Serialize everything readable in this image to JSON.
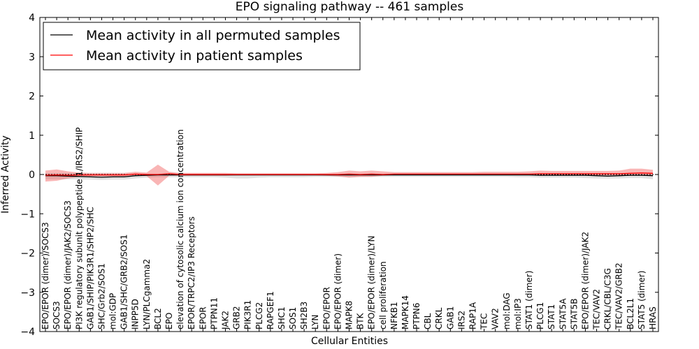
{
  "chart_data": {
    "type": "line",
    "title": "EPO signaling pathway -- 461 samples",
    "xlabel": "Cellular Entities",
    "ylabel": "Inferred Activity",
    "ylim": [
      -4,
      4
    ],
    "yticks": [
      "4",
      "3",
      "2",
      "1",
      "0",
      "−1",
      "−2",
      "−3",
      "−4"
    ],
    "ytick_values": [
      4,
      3,
      2,
      1,
      0,
      -1,
      -2,
      -3,
      -4
    ],
    "legend": [
      {
        "label": "Mean activity in all permuted samples",
        "color": "#000000"
      },
      {
        "label": "Mean activity in patient samples",
        "color": "#ff0000"
      }
    ],
    "legend_placement": "top-left",
    "categories": [
      "EPO/EPOR (dimer)/SOCS3",
      "SOCS3",
      "EPO/EPOR (dimer)/JAK2/SOCS3",
      "PI3K regulatory subunit polypeptide 1/IRS2/SHIP",
      "GAB1/SHIP/PIK3R1/SHP2/SHC",
      "SHC/Grb2/SOS1",
      "mol:GDP",
      "GAB1/SHC/GRB2/SOS1",
      "INPP5D",
      "LYN/PLCgamma2",
      "BCL2",
      "EPO",
      "elevation of cytosolic calcium ion concentration",
      "EPOR/TRPC2/IP3 Receptors",
      "EPOR",
      "PTPN11",
      "JAK2",
      "GRB2",
      "PIK3R1",
      "PLCG2",
      "RAPGEF1",
      "SHC1",
      "SOS1",
      "SH2B3",
      "LYN",
      "EPO/EPOR",
      "EPO/EPOR (dimer)",
      "MAPK8",
      "BTK",
      "EPO/EPOR (dimer)/LYN",
      "cell proliferation",
      "NFKB1",
      "MAPK14",
      "PTPN6",
      "CBL",
      "CRKL",
      "GAB1",
      "IRS2",
      "RAP1A",
      "TEC",
      "VAV2",
      "mol:DAG",
      "mol:IP3",
      "STAT1 (dimer)",
      "PLCG1",
      "STAT1",
      "STAT5A",
      "STAT5B",
      "EPO/EPOR (dimer)/JAK2",
      "TEC/VAV2",
      "CRKL/CBL/C3G",
      "TEC/VAV2/GRB2",
      "BCL2L1",
      "STAT5 (dimer)",
      "HRAS"
    ],
    "series": [
      {
        "name": "Mean activity in all permuted samples",
        "color": "#000000",
        "values": [
          -0.03,
          -0.03,
          -0.04,
          -0.05,
          -0.06,
          -0.07,
          -0.06,
          -0.06,
          -0.03,
          -0.02,
          -0.01,
          -0.01,
          -0.01,
          -0.01,
          -0.01,
          -0.01,
          -0.01,
          -0.01,
          -0.01,
          -0.01,
          -0.01,
          -0.01,
          -0.01,
          -0.01,
          -0.01,
          -0.01,
          -0.01,
          -0.01,
          -0.01,
          -0.01,
          -0.01,
          -0.01,
          -0.01,
          -0.01,
          -0.01,
          -0.01,
          -0.01,
          -0.01,
          -0.01,
          -0.01,
          -0.01,
          -0.01,
          -0.01,
          -0.01,
          -0.02,
          -0.02,
          -0.02,
          -0.02,
          -0.02,
          -0.03,
          -0.04,
          -0.03,
          -0.02,
          -0.02,
          -0.03
        ],
        "band_upper": [
          0.03,
          0.03,
          0.03,
          0.03,
          0.02,
          0.02,
          0.02,
          0.02,
          0.02,
          0.02,
          0.02,
          0.02,
          0.02,
          0.02,
          0.02,
          0.02,
          0.02,
          0.01,
          0.01,
          0.01,
          0.01,
          0.01,
          0.01,
          0.01,
          0.01,
          0.01,
          0.01,
          0.01,
          0.01,
          0.01,
          0.01,
          0.01,
          0.01,
          0.01,
          0.01,
          0.01,
          0.01,
          0.01,
          0.01,
          0.01,
          0.01,
          0.01,
          0.01,
          0.01,
          0.01,
          0.01,
          0.01,
          0.01,
          0.01,
          0.01,
          0.01,
          0.01,
          0.01,
          0.01,
          0.01
        ],
        "band_lower": [
          -0.12,
          -0.12,
          -0.12,
          -0.13,
          -0.13,
          -0.14,
          -0.13,
          -0.13,
          -0.1,
          -0.08,
          -0.07,
          -0.07,
          -0.07,
          -0.07,
          -0.07,
          -0.07,
          -0.08,
          -0.1,
          -0.1,
          -0.08,
          -0.07,
          -0.07,
          -0.07,
          -0.07,
          -0.06,
          -0.06,
          -0.06,
          -0.06,
          -0.06,
          -0.06,
          -0.06,
          -0.06,
          -0.06,
          -0.06,
          -0.06,
          -0.06,
          -0.06,
          -0.06,
          -0.06,
          -0.06,
          -0.06,
          -0.06,
          -0.07,
          -0.07,
          -0.08,
          -0.08,
          -0.08,
          -0.08,
          -0.09,
          -0.1,
          -0.1,
          -0.1,
          -0.09,
          -0.09,
          -0.12
        ]
      },
      {
        "name": "Mean activity in patient samples",
        "color": "#ff0000",
        "values": [
          -0.02,
          -0.01,
          -0.02,
          -0.01,
          -0.01,
          -0.01,
          -0.01,
          -0.01,
          0.01,
          0.0,
          0.0,
          0.02,
          0.0,
          0.0,
          0.0,
          0.0,
          0.0,
          0.0,
          0.0,
          0.0,
          0.0,
          0.0,
          0.0,
          0.0,
          0.0,
          0.0,
          0.0,
          0.01,
          0.0,
          0.01,
          0.0,
          0.01,
          0.01,
          0.01,
          0.01,
          0.01,
          0.01,
          0.01,
          0.01,
          0.01,
          0.01,
          0.01,
          0.01,
          0.01,
          0.02,
          0.02,
          0.02,
          0.02,
          0.02,
          0.02,
          0.02,
          0.02,
          0.03,
          0.04,
          0.03
        ],
        "band_upper": [
          0.1,
          0.13,
          0.08,
          0.05,
          0.04,
          0.04,
          0.04,
          0.04,
          0.07,
          0.05,
          0.25,
          0.07,
          0.04,
          0.04,
          0.04,
          0.04,
          0.04,
          0.03,
          0.03,
          0.03,
          0.03,
          0.03,
          0.03,
          0.03,
          0.03,
          0.04,
          0.06,
          0.1,
          0.08,
          0.1,
          0.08,
          0.06,
          0.06,
          0.06,
          0.06,
          0.06,
          0.06,
          0.06,
          0.06,
          0.07,
          0.07,
          0.07,
          0.07,
          0.08,
          0.1,
          0.09,
          0.09,
          0.09,
          0.09,
          0.09,
          0.09,
          0.1,
          0.15,
          0.15,
          0.12
        ],
        "band_lower": [
          -0.18,
          -0.16,
          -0.1,
          -0.06,
          -0.05,
          -0.05,
          -0.05,
          -0.05,
          -0.04,
          -0.04,
          -0.28,
          -0.03,
          -0.03,
          -0.03,
          -0.03,
          -0.03,
          -0.03,
          -0.02,
          -0.02,
          -0.02,
          -0.02,
          -0.02,
          -0.02,
          -0.02,
          -0.02,
          -0.03,
          -0.05,
          -0.08,
          -0.06,
          -0.06,
          -0.03,
          -0.02,
          -0.02,
          -0.02,
          -0.02,
          -0.02,
          -0.02,
          -0.02,
          -0.02,
          -0.02,
          -0.02,
          -0.02,
          -0.02,
          -0.02,
          -0.03,
          -0.02,
          -0.02,
          -0.02,
          -0.02,
          -0.02,
          -0.02,
          -0.02,
          -0.02,
          -0.02,
          -0.02
        ]
      }
    ],
    "grid": false
  }
}
